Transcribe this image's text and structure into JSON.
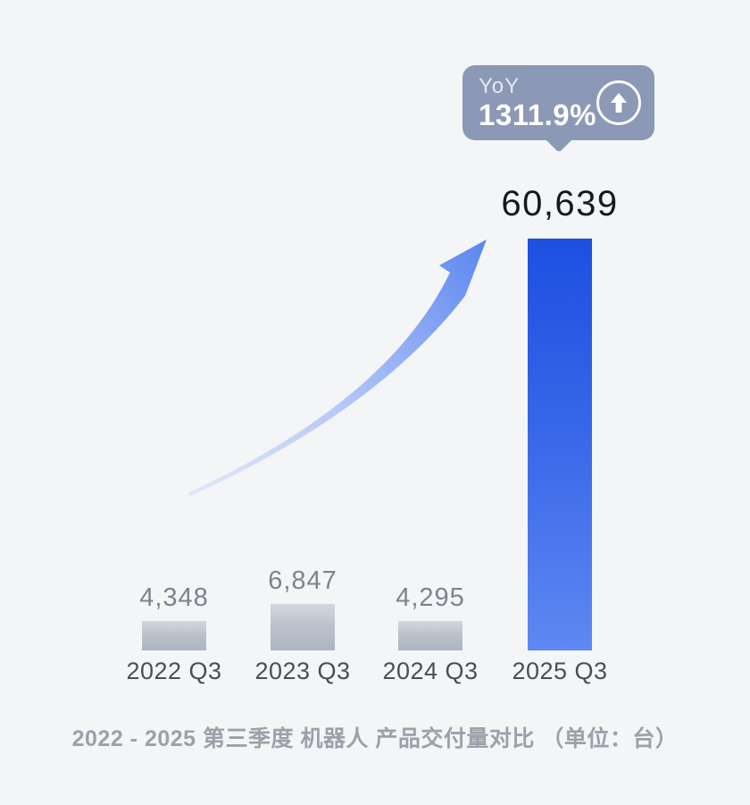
{
  "badge": {
    "label": "YoY",
    "value": "1311.9%",
    "icon": "arrow-up-circle-icon",
    "bg_color": "#8B99B6"
  },
  "chart_data": {
    "type": "bar",
    "categories": [
      "2022 Q3",
      "2023 Q3",
      "2024 Q3",
      "2025 Q3"
    ],
    "values": [
      4348,
      6847,
      4295,
      60639
    ],
    "value_labels": [
      "4,348",
      "6,847",
      "4,295",
      "60,639"
    ],
    "series": [
      {
        "name": "产品交付量",
        "values": [
          4348,
          6847,
          4295,
          60639
        ]
      }
    ],
    "title": "2022 - 2025 第三季度 机器人 产品交付量对比 （单位：台）",
    "xlabel": "",
    "ylabel": "",
    "unit": "台",
    "ylim": [
      0,
      60639
    ],
    "grid": false,
    "legend_position": "none",
    "highlight_index": 3,
    "yoy_growth": "1311.9%",
    "colors": {
      "background": "#F4F5F7",
      "bar_highlight_top": "#1E4FE0",
      "bar_highlight_bottom": "#5E88F2",
      "bar_gray_top": "#D3D8DF",
      "bar_gray_bottom": "#ADB4C2",
      "arrow_blue": "#5B86F0",
      "badge_bg": "#8B99B6",
      "value_text": "#7D838D",
      "highlight_value_text": "#17181B",
      "axis_label_text": "#4A4E55",
      "caption_text": "#9CA1A9"
    }
  }
}
